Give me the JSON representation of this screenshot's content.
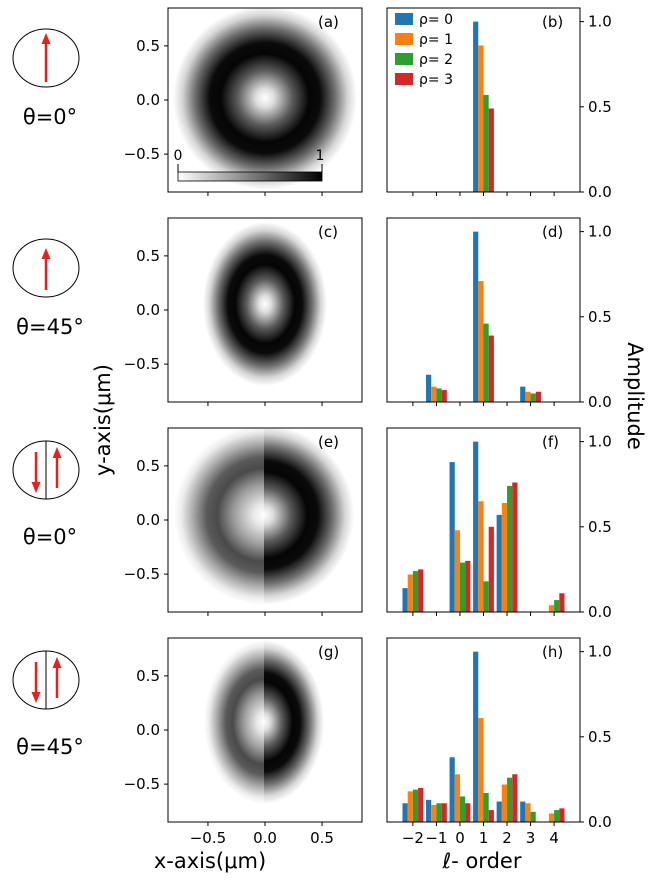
{
  "panel_letters": [
    "(a)",
    "(b)",
    "(c)",
    "(d)",
    "(e)",
    "(f)",
    "(g)",
    "(h)"
  ],
  "theta_labels": [
    "θ=0°",
    "θ=45°",
    "θ=0°",
    "θ=45°"
  ],
  "arrow_color": "#e8201c",
  "colorbar": {
    "min_label": "0",
    "max_label": "1"
  },
  "y_axis_label": "y-axis(μm)",
  "x_axis_label": "x-axis(μm)",
  "right_axis_label": "Amplitude",
  "l_axis_label": "ℓ- order",
  "image_ticks": {
    "x": [
      "−0.5",
      "0.0",
      "0.5"
    ],
    "y": [
      "0.5",
      "0.0",
      "−0.5"
    ]
  },
  "amp_ticks": [
    "1.0",
    "0.5",
    "0.0"
  ],
  "l_ticks": [
    "−2",
    "−1",
    "0",
    "1",
    "2",
    "3",
    "4"
  ],
  "chart_data": [
    {
      "panel": "(a)",
      "type": "heatmap",
      "description_values": "ring intensity, linear polarisation θ=0°",
      "xlim": [
        -0.85,
        0.85
      ],
      "ylim": [
        -0.85,
        0.85
      ],
      "colorbar_range": [
        0,
        1
      ]
    },
    {
      "panel": "(b)",
      "type": "bar",
      "xlabel": "ℓ- order",
      "ylabel": "Amplitude",
      "ylim": [
        0,
        1.08
      ],
      "categories": [
        -2,
        -1,
        0,
        1,
        2,
        3,
        4
      ],
      "series": [
        {
          "name": "ρ= 0",
          "color": "#1f77b4",
          "values": [
            0,
            0,
            0,
            1.0,
            0,
            0,
            0
          ]
        },
        {
          "name": "ρ= 1",
          "color": "#ff7f0e",
          "values": [
            0,
            0,
            0,
            0.86,
            0,
            0,
            0
          ]
        },
        {
          "name": "ρ= 2",
          "color": "#2ca02c",
          "values": [
            0,
            0,
            0,
            0.57,
            0,
            0,
            0
          ]
        },
        {
          "name": "ρ= 3",
          "color": "#d62728",
          "values": [
            0,
            0,
            0,
            0.49,
            0,
            0,
            0
          ]
        }
      ],
      "legend": "top-left"
    },
    {
      "panel": "(c)",
      "type": "heatmap",
      "xlim": [
        -0.85,
        0.85
      ],
      "ylim": [
        -0.85,
        0.85
      ]
    },
    {
      "panel": "(d)",
      "type": "bar",
      "ylim": [
        0,
        1.08
      ],
      "categories": [
        -2,
        -1,
        0,
        1,
        2,
        3,
        4
      ],
      "series": [
        {
          "name": "ρ= 0",
          "color": "#1f77b4",
          "values": [
            0,
            0.16,
            0,
            1.0,
            0,
            0.09,
            0
          ]
        },
        {
          "name": "ρ= 1",
          "color": "#ff7f0e",
          "values": [
            0,
            0.09,
            0,
            0.71,
            0,
            0.06,
            0
          ]
        },
        {
          "name": "ρ= 2",
          "color": "#2ca02c",
          "values": [
            0,
            0.08,
            0,
            0.46,
            0,
            0.05,
            0
          ]
        },
        {
          "name": "ρ= 3",
          "color": "#d62728",
          "values": [
            0,
            0.07,
            0,
            0.39,
            0,
            0.06,
            0
          ]
        }
      ]
    },
    {
      "panel": "(e)",
      "type": "heatmap",
      "xlim": [
        -0.85,
        0.85
      ],
      "ylim": [
        -0.85,
        0.85
      ]
    },
    {
      "panel": "(f)",
      "type": "bar",
      "ylim": [
        0,
        1.08
      ],
      "categories": [
        -2,
        -1,
        0,
        1,
        2,
        3,
        4
      ],
      "series": [
        {
          "name": "ρ= 0",
          "color": "#1f77b4",
          "values": [
            0.14,
            0,
            0.88,
            1.0,
            0.57,
            0,
            0
          ]
        },
        {
          "name": "ρ= 1",
          "color": "#ff7f0e",
          "values": [
            0.22,
            0,
            0.48,
            0.65,
            0.64,
            0,
            0.04
          ]
        },
        {
          "name": "ρ= 2",
          "color": "#2ca02c",
          "values": [
            0.24,
            0,
            0.29,
            0.18,
            0.74,
            0,
            0.07
          ]
        },
        {
          "name": "ρ= 3",
          "color": "#d62728",
          "values": [
            0.25,
            0,
            0.3,
            0.5,
            0.76,
            0,
            0.11
          ]
        }
      ]
    },
    {
      "panel": "(g)",
      "type": "heatmap",
      "xlim": [
        -0.85,
        0.85
      ],
      "ylim": [
        -0.85,
        0.85
      ]
    },
    {
      "panel": "(h)",
      "type": "bar",
      "ylim": [
        0,
        1.08
      ],
      "categories": [
        -2,
        -1,
        0,
        1,
        2,
        3,
        4
      ],
      "series": [
        {
          "name": "ρ= 0",
          "color": "#1f77b4",
          "values": [
            0.11,
            0.13,
            0.38,
            1.0,
            0.12,
            0.12,
            0
          ]
        },
        {
          "name": "ρ= 1",
          "color": "#ff7f0e",
          "values": [
            0.18,
            0.1,
            0.28,
            0.61,
            0.22,
            0.11,
            0.05
          ]
        },
        {
          "name": "ρ= 2",
          "color": "#2ca02c",
          "values": [
            0.19,
            0.11,
            0.15,
            0.17,
            0.26,
            0.06,
            0.07
          ]
        },
        {
          "name": "ρ= 3",
          "color": "#d62728",
          "values": [
            0.2,
            0.11,
            0.11,
            0.07,
            0.28,
            0,
            0.08
          ]
        }
      ]
    }
  ]
}
